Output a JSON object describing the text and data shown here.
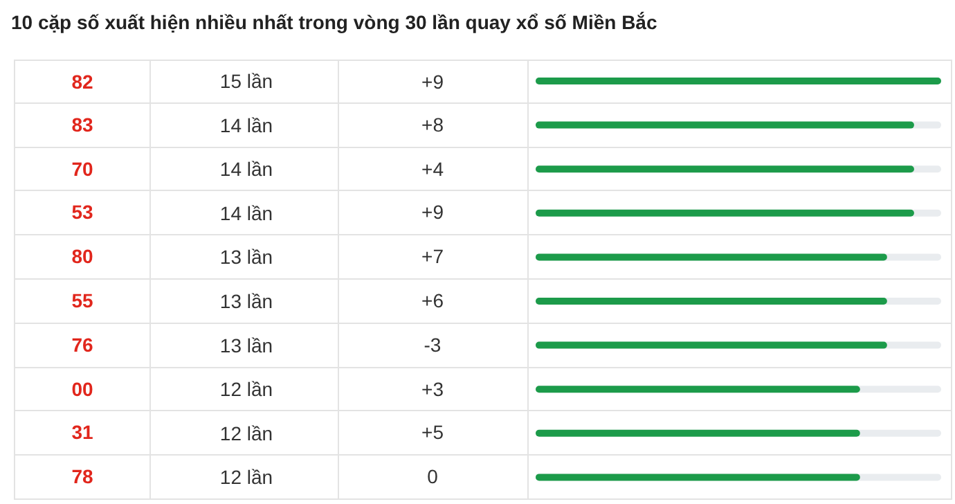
{
  "chart_data": {
    "type": "bar",
    "orientation": "horizontal",
    "title": "10 cặp số xuất hiện nhiều nhất trong vòng 30 lần quay xổ số Miền Bắc",
    "categories": [
      "82",
      "83",
      "70",
      "53",
      "80",
      "55",
      "76",
      "00",
      "31",
      "78"
    ],
    "values": [
      15,
      14,
      14,
      14,
      13,
      13,
      13,
      12,
      12,
      12
    ],
    "value_labels": [
      "15 lần",
      "14 lần",
      "14 lần",
      "14 lần",
      "13 lần",
      "13 lần",
      "13 lần",
      "12 lần",
      "12 lần",
      "12 lần"
    ],
    "color": "#1c9b4a",
    "xlim": [
      0,
      15
    ],
    "tick_labels": false,
    "annotations": [
      "+9",
      "+8",
      "+4",
      "+9",
      "+7",
      "+6",
      "-3",
      "+3",
      "+5",
      "0"
    ]
  }
}
